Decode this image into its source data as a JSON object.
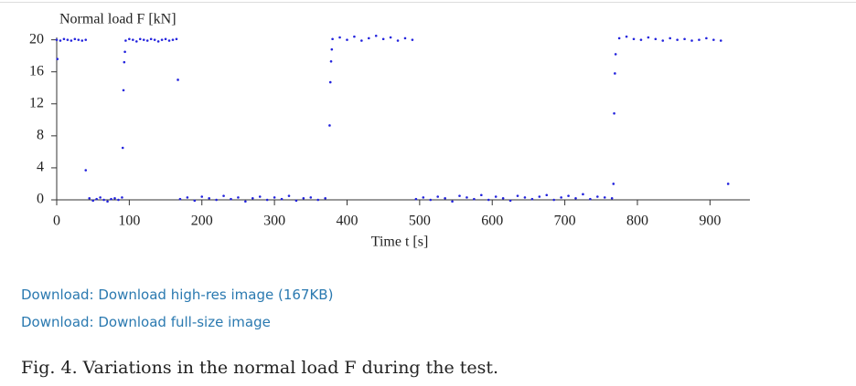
{
  "chart_data": {
    "type": "scatter",
    "y_label": "Normal load F [kN]",
    "x_label": "Time t [s]",
    "color": "#2222dd",
    "xlim": [
      0,
      955
    ],
    "ylim": [
      0,
      20.3
    ],
    "xticks": [
      0,
      100,
      200,
      300,
      400,
      500,
      600,
      700,
      800,
      900
    ],
    "yticks": [
      0,
      4,
      8,
      12,
      16,
      20
    ],
    "x": [
      0,
      1,
      5,
      10,
      15,
      20,
      25,
      30,
      35,
      40,
      40,
      45,
      50,
      55,
      60,
      65,
      70,
      75,
      80,
      85,
      90,
      91,
      92,
      93,
      94,
      95,
      100,
      105,
      110,
      115,
      120,
      125,
      130,
      135,
      140,
      145,
      150,
      155,
      160,
      165,
      167,
      170,
      180,
      190,
      200,
      210,
      220,
      230,
      240,
      250,
      260,
      270,
      280,
      290,
      300,
      310,
      320,
      330,
      340,
      350,
      360,
      370,
      376,
      377,
      378,
      379,
      380,
      390,
      400,
      410,
      420,
      430,
      440,
      450,
      460,
      470,
      480,
      490,
      495,
      505,
      515,
      525,
      535,
      545,
      555,
      565,
      575,
      585,
      595,
      605,
      615,
      625,
      635,
      645,
      655,
      665,
      675,
      685,
      695,
      705,
      715,
      725,
      735,
      745,
      755,
      765,
      767,
      768,
      769,
      770,
      775,
      785,
      795,
      805,
      815,
      825,
      835,
      845,
      855,
      865,
      875,
      885,
      895,
      905,
      915,
      925
    ],
    "values": [
      20.0,
      17.6,
      19.9,
      20.1,
      20.0,
      19.9,
      20.1,
      20.0,
      19.9,
      20.0,
      3.7,
      0.2,
      -0.1,
      0.1,
      0.3,
      0.0,
      -0.2,
      0.1,
      0.2,
      0.0,
      0.3,
      6.5,
      13.7,
      17.2,
      18.5,
      19.9,
      20.1,
      20.0,
      19.8,
      20.1,
      20.0,
      19.9,
      20.1,
      20.0,
      19.8,
      20.0,
      20.1,
      19.9,
      20.0,
      20.1,
      15.0,
      0.1,
      0.3,
      -0.1,
      0.4,
      0.2,
      0.0,
      0.5,
      0.1,
      0.3,
      -0.2,
      0.2,
      0.4,
      0.0,
      0.3,
      0.1,
      0.5,
      -0.1,
      0.2,
      0.3,
      0.0,
      0.2,
      9.3,
      14.7,
      17.3,
      18.8,
      20.1,
      20.3,
      20.0,
      20.4,
      19.9,
      20.2,
      20.5,
      20.1,
      20.3,
      19.9,
      20.2,
      20.0,
      0.1,
      0.3,
      0.0,
      0.4,
      0.2,
      -0.2,
      0.5,
      0.3,
      0.1,
      0.6,
      0.0,
      0.4,
      0.2,
      -0.1,
      0.5,
      0.3,
      0.1,
      0.4,
      0.6,
      0.0,
      0.3,
      0.5,
      0.2,
      0.7,
      0.1,
      0.4,
      0.3,
      0.2,
      2.0,
      10.8,
      15.8,
      18.2,
      20.2,
      20.4,
      20.1,
      20.0,
      20.3,
      20.1,
      19.9,
      20.2,
      20.0,
      20.1,
      19.9,
      20.0,
      20.2,
      20.0,
      19.9,
      2.0
    ]
  },
  "links": [
    "Download: Download high-res image (167KB)",
    "Download: Download full-size image"
  ],
  "caption": "Fig. 4. Variations in the normal load F during the test."
}
